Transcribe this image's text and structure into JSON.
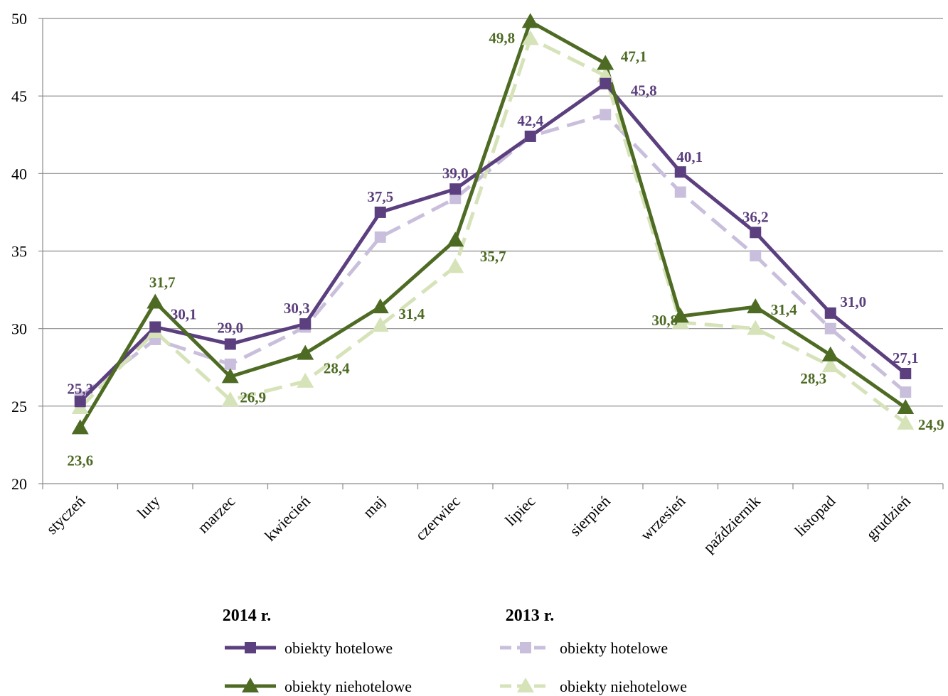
{
  "chart_data": {
    "type": "line",
    "categories": [
      "styczeń",
      "luty",
      "marzec",
      "kwiecień",
      "maj",
      "czerwiec",
      "lipiec",
      "sierpień",
      "wrzesień",
      "październik",
      "listopad",
      "grudzień"
    ],
    "ylim": [
      20,
      50
    ],
    "yticks": [
      20,
      25,
      30,
      35,
      40,
      45,
      50
    ],
    "grid": true,
    "legend_groups": [
      "2014 r.",
      "2013 r."
    ],
    "series": [
      {
        "name": "obiekty hotelowe",
        "group": "2014 r.",
        "color": "#5b3f7e",
        "marker": "square",
        "dashed": false,
        "values": [
          25.3,
          30.1,
          29.0,
          30.3,
          37.5,
          39.0,
          42.4,
          45.8,
          40.1,
          36.2,
          31.0,
          27.1
        ],
        "labels": [
          "25,3",
          "30,1",
          "29,0",
          "30,3",
          "37,5",
          "39,0",
          "42,4",
          "45,8",
          "40,1",
          "36,2",
          "31,0",
          "27,1"
        ]
      },
      {
        "name": "obiekty niehotelowe",
        "group": "2014 r.",
        "color": "#4e6b24",
        "marker": "triangle",
        "dashed": false,
        "values": [
          23.6,
          31.7,
          26.9,
          28.4,
          31.4,
          35.7,
          49.8,
          47.1,
          30.8,
          31.4,
          28.3,
          24.9
        ],
        "labels": [
          "23,6",
          "31,7",
          "26,9",
          "28,4",
          "31,4",
          "35,7",
          "49,8",
          "47,1",
          "30,8",
          "31,4",
          "28,3",
          "24,9"
        ]
      },
      {
        "name": "obiekty hotelowe",
        "group": "2013 r.",
        "color": "#c9bfdc",
        "marker": "square",
        "dashed": true,
        "values": [
          25.6,
          29.3,
          27.7,
          30.1,
          35.9,
          38.4,
          42.4,
          43.8,
          38.8,
          34.7,
          30.0,
          25.9
        ]
      },
      {
        "name": "obiekty niehotelowe",
        "group": "2013 r.",
        "color": "#d6e3b9",
        "marker": "triangle",
        "dashed": true,
        "values": [
          24.9,
          29.8,
          25.4,
          26.6,
          30.2,
          34.0,
          48.7,
          46.3,
          30.4,
          30.0,
          27.6,
          23.9
        ]
      }
    ]
  }
}
